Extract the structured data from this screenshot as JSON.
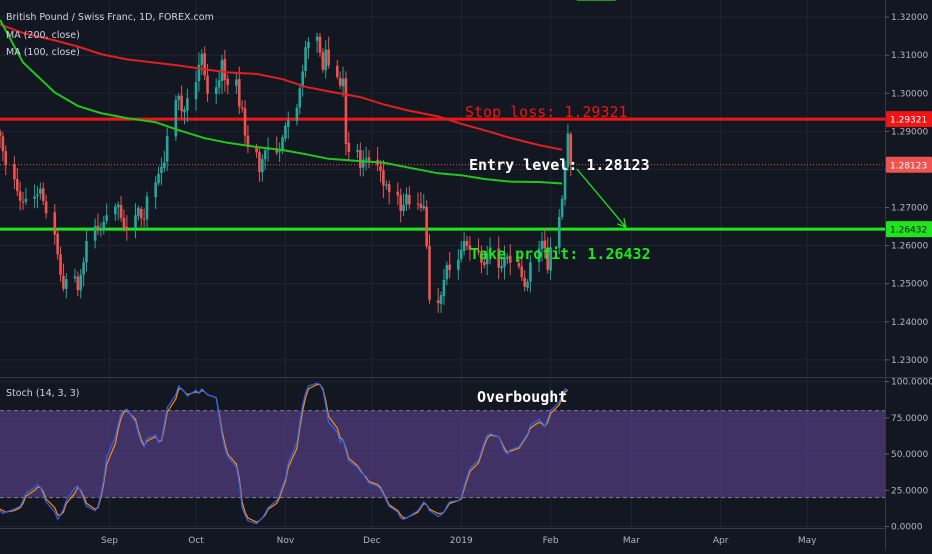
{
  "chart_data": [
    {
      "type": "candlestick",
      "title": "British Pound / Swiss Franc, 1D, FOREX.com",
      "indicators": [
        {
          "name": "MA (200, close)",
          "color": "#e21f1f"
        },
        {
          "name": "MA (100, close)",
          "color": "#22c71d"
        }
      ],
      "ylim": [
        1.2255,
        1.3245
      ],
      "y_ticks": [
        "1.32000",
        "1.31000",
        "1.30000",
        "1.29000",
        "1.28000",
        "1.27000",
        "1.26000",
        "1.25000",
        "1.24000",
        "1.23000"
      ],
      "y_tick_values": [
        1.32,
        1.31,
        1.3,
        1.29,
        1.28,
        1.27,
        1.26,
        1.25,
        1.24,
        1.23
      ],
      "x_ticks": [
        "Sep",
        "Oct",
        "Nov",
        "Dec",
        "2019",
        "Feb",
        "Mar",
        "Apr",
        "May"
      ],
      "x_tick_dates": [
        "2018-09-01",
        "2018-10-01",
        "2018-11-01",
        "2018-12-01",
        "2019-01-01",
        "2019-02-01",
        "2019-03-01",
        "2019-04-01",
        "2019-05-01"
      ],
      "x_range": [
        "2018-07-25",
        "2019-05-28"
      ],
      "candles_start": "2018-07-25",
      "bull_color": "#26a69a",
      "bear_color": "#ef5350",
      "closes": [
        1.2888,
        1.2848,
        1.2812,
        1.2774,
        1.2743,
        1.2718,
        1.2713,
        1.2723,
        1.2729,
        1.2734,
        1.2749,
        1.2717,
        1.2685,
        1.2629,
        1.2577,
        1.2523,
        1.2487,
        1.2512,
        1.2519,
        1.2483,
        1.2523,
        1.2556,
        1.2612,
        1.2651,
        1.2645,
        1.2647,
        1.2663,
        1.268,
        1.2703,
        1.2708,
        1.2673,
        1.2647,
        1.2644,
        1.268,
        1.2699,
        1.2672,
        1.2668,
        1.2729,
        1.2766,
        1.2788,
        1.2807,
        1.2818,
        1.2888,
        1.2983,
        1.2993,
        1.2953,
        1.2957,
        1.2987,
        1.3029,
        1.3075,
        1.3103,
        1.3047,
        1.2999,
        1.3016,
        1.3034,
        1.3087,
        1.3035,
        1.3022,
        1.3036,
        1.2965,
        1.296,
        1.2889,
        1.2859,
        1.2845,
        1.2794,
        1.2827,
        1.285,
        1.2853,
        1.2844,
        1.2848,
        1.2884,
        1.2915,
        1.2929,
        1.2962,
        1.3013,
        1.3057,
        1.3121,
        1.3135,
        1.3149,
        1.3107,
        1.3062,
        1.3115,
        1.3073,
        1.3043,
        1.302,
        1.3038,
        1.2867,
        1.2846,
        1.2851,
        1.2804,
        1.2826,
        1.2829,
        1.2823,
        1.2811,
        1.2797,
        1.2758,
        1.276,
        1.274,
        1.2732,
        1.2691,
        1.2707,
        1.2735,
        1.2708,
        1.2709,
        1.2699,
        1.2704,
        1.2598,
        1.2458,
        1.2449,
        1.247,
        1.251,
        1.2549,
        1.2536,
        1.2563,
        1.2589,
        1.2612,
        1.26,
        1.2589,
        1.2582,
        1.2555,
        1.2549,
        1.2579,
        1.2591,
        1.2542,
        1.2546,
        1.2568,
        1.2571,
        1.2555,
        1.2545,
        1.2517,
        1.2492,
        1.2505,
        1.2556,
        1.2592,
        1.2612,
        1.2593,
        1.2537,
        1.2595,
        1.2675,
        1.2723,
        1.2807,
        1.2895,
        1.2812
      ],
      "ma200": [
        [
          0,
          1.3181
        ],
        [
          6,
          1.3158
        ],
        [
          13,
          1.3139
        ],
        [
          19,
          1.3123
        ],
        [
          25,
          1.3103
        ],
        [
          32,
          1.3089
        ],
        [
          38,
          1.308
        ],
        [
          44,
          1.3073
        ],
        [
          51,
          1.3063
        ],
        [
          57,
          1.3055
        ],
        [
          63,
          1.3051
        ],
        [
          70,
          1.3037
        ],
        [
          76,
          1.3017
        ],
        [
          82,
          1.3005
        ],
        [
          89,
          1.299
        ],
        [
          95,
          1.2971
        ],
        [
          101,
          1.2956
        ],
        [
          108,
          1.2939
        ],
        [
          114,
          1.292
        ],
        [
          120,
          1.2903
        ],
        [
          127,
          1.2883
        ],
        [
          133,
          1.2864
        ],
        [
          139,
          1.2852
        ],
        [
          145,
          1.2841
        ]
      ],
      "ma100": [
        [
          0,
          1.3193
        ],
        [
          6,
          1.3081
        ],
        [
          13,
          1.3002
        ],
        [
          19,
          1.2967
        ],
        [
          25,
          1.2948
        ],
        [
          32,
          1.2935
        ],
        [
          38,
          1.2924
        ],
        [
          44,
          1.2903
        ],
        [
          51,
          1.2882
        ],
        [
          57,
          1.287
        ],
        [
          63,
          1.2859
        ],
        [
          70,
          1.2851
        ],
        [
          76,
          1.284
        ],
        [
          82,
          1.2828
        ],
        [
          89,
          1.2822
        ],
        [
          95,
          1.2818
        ],
        [
          101,
          1.2806
        ],
        [
          108,
          1.279
        ],
        [
          114,
          1.2785
        ],
        [
          120,
          1.2775
        ],
        [
          127,
          1.2768
        ],
        [
          133,
          1.2767
        ],
        [
          139,
          1.2763
        ],
        [
          145,
          1.2762
        ]
      ],
      "levels": [
        {
          "name": "stop-loss",
          "value": 1.29321,
          "badge": "1.29321",
          "color": "#f01515"
        },
        {
          "name": "entry",
          "value": 1.28123,
          "badge": "1.28123",
          "color": "#ef5350"
        },
        {
          "name": "take-profit",
          "value": 1.26432,
          "badge": "1.26432",
          "color": "#1fe51f"
        }
      ],
      "annotations": {
        "stop_loss": "Stop loss: 1.29321",
        "entry": "Entry level: 1.28123",
        "take_profit": "Take profit: 1.26432"
      }
    },
    {
      "type": "line",
      "title": "Stoch (14, 3, 3)",
      "ylim": [
        -1,
        102.5
      ],
      "y_ticks": [
        "100.0000",
        "75.0000",
        "50.0000",
        "25.0000",
        "0.0000"
      ],
      "y_tick_values": [
        100,
        75,
        50,
        25,
        0
      ],
      "overbought": 80,
      "oversold": 20,
      "series": [
        {
          "color": "#2962ff",
          "values": [
            11,
            9,
            10,
            12,
            13,
            14,
            18,
            23,
            27,
            29,
            27,
            22,
            17,
            10,
            5,
            8,
            12,
            18,
            27,
            28,
            24,
            19,
            14,
            11,
            14,
            22,
            33,
            48,
            62,
            71,
            78,
            80,
            81,
            72,
            64,
            58,
            55,
            61,
            63,
            58,
            60,
            71,
            82,
            91,
            97,
            95,
            93,
            90,
            94,
            92,
            95,
            93,
            91,
            89,
            76,
            63,
            54,
            48,
            41,
            30,
            13,
            8,
            4,
            2,
            4,
            6,
            9,
            13,
            18,
            22,
            28,
            33,
            44,
            58,
            72,
            84,
            92,
            97,
            99,
            98,
            94,
            84,
            72,
            65,
            58,
            60,
            52,
            45,
            41,
            38,
            36,
            33,
            30,
            28,
            26,
            22,
            18,
            14,
            10,
            6,
            5,
            6,
            7,
            11,
            14,
            17,
            15,
            11,
            7,
            8,
            10,
            14,
            17,
            18,
            20,
            28,
            34,
            40,
            46,
            52,
            58,
            63,
            64,
            62,
            57,
            52,
            50,
            53,
            55,
            58,
            61,
            64,
            70,
            74,
            72,
            69,
            74,
            80,
            86,
            91,
            95,
            94
          ]
        },
        {
          "color": "#ff8f00",
          "values": [
            12,
            11,
            10,
            11,
            12,
            13,
            16,
            21,
            25,
            27,
            27,
            24,
            19,
            13,
            8,
            8,
            10,
            16,
            23,
            27,
            25,
            21,
            16,
            12,
            13,
            20,
            30,
            43,
            57,
            67,
            75,
            79,
            80,
            74,
            66,
            60,
            56,
            59,
            62,
            59,
            59,
            68,
            79,
            88,
            95,
            95,
            93,
            91,
            93,
            92,
            94,
            93,
            91,
            89,
            78,
            66,
            57,
            50,
            43,
            33,
            17,
            10,
            6,
            3,
            4,
            6,
            8,
            12,
            16,
            20,
            26,
            31,
            41,
            54,
            68,
            80,
            89,
            95,
            98,
            98,
            95,
            87,
            76,
            68,
            61,
            60,
            54,
            47,
            42,
            39,
            36,
            34,
            31,
            29,
            27,
            23,
            19,
            15,
            11,
            8,
            6,
            6,
            7,
            10,
            13,
            16,
            15,
            12,
            9,
            9,
            10,
            13,
            16,
            18,
            19,
            26,
            32,
            38,
            44,
            50,
            56,
            61,
            63,
            62,
            58,
            54,
            51,
            52,
            54,
            57,
            60,
            63,
            68,
            72,
            71,
            69,
            72,
            78,
            84,
            89,
            93,
            94
          ]
        }
      ],
      "annotation": "Overbought"
    }
  ]
}
